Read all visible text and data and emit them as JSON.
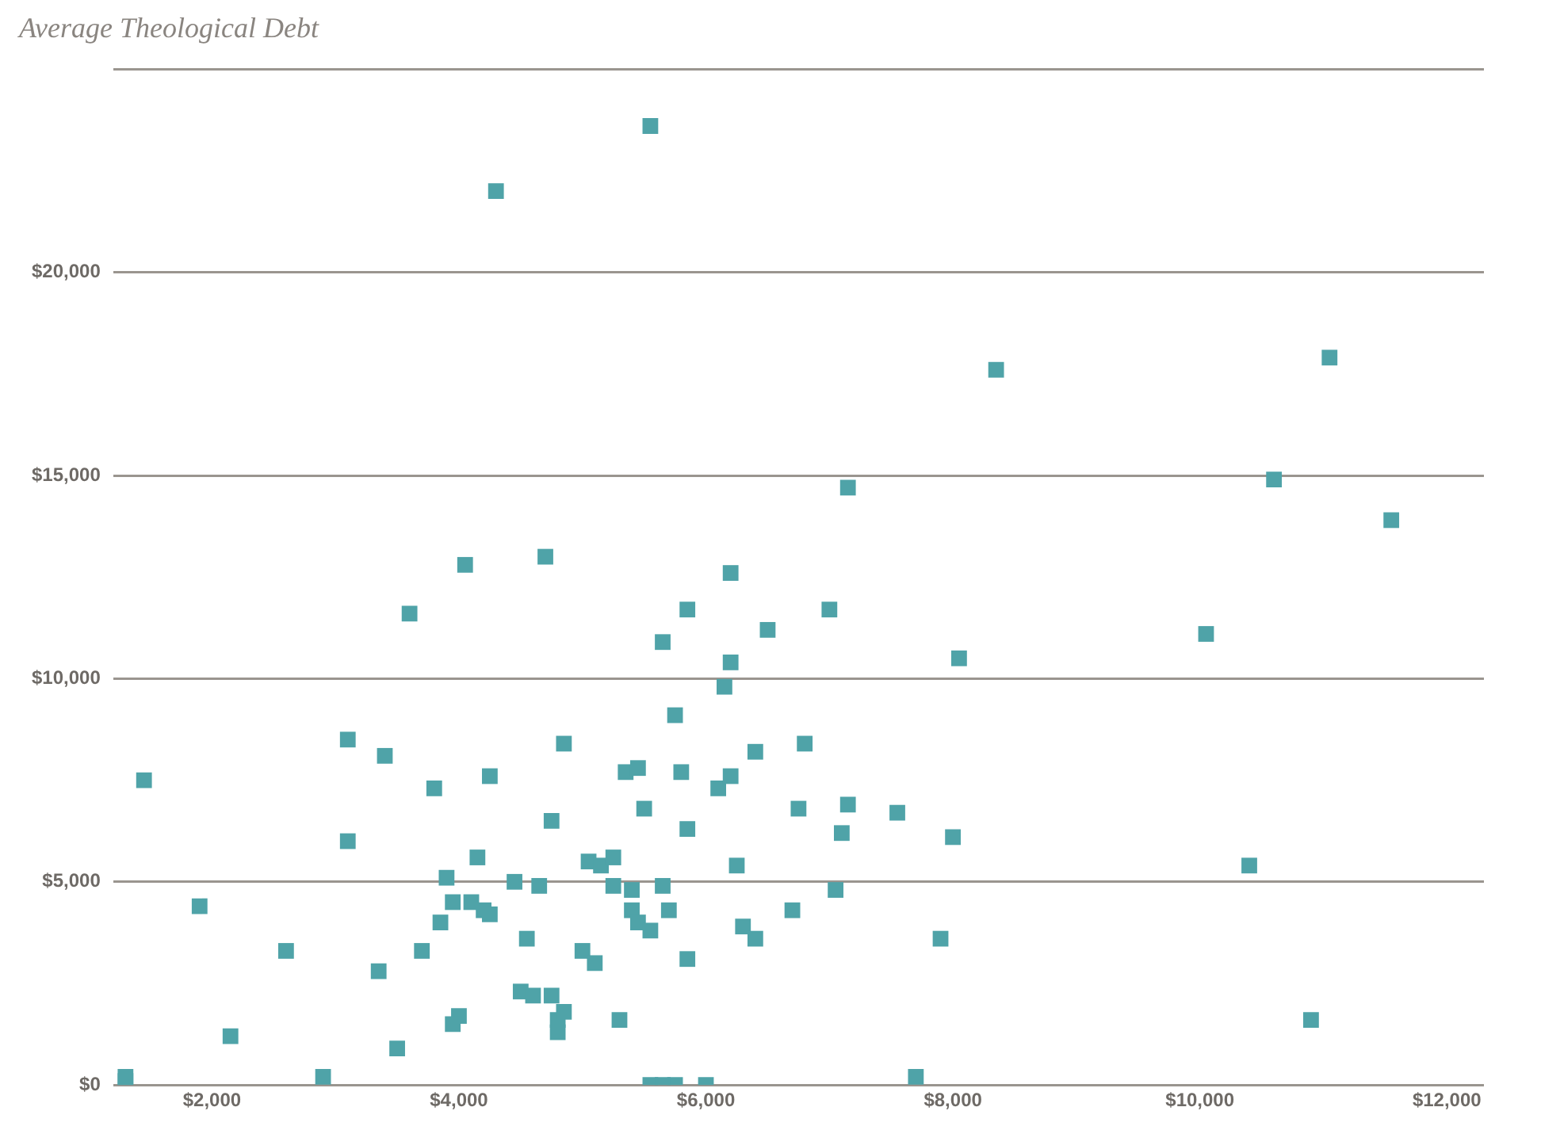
{
  "chart_data": {
    "type": "scatter",
    "title": "Average Theological Debt",
    "marker": "square",
    "grid": "y",
    "legend": false,
    "xlim": [
      1200,
      12300
    ],
    "xticks": [
      {
        "value": 2000,
        "label": "$2,000"
      },
      {
        "value": 4000,
        "label": "$4,000"
      },
      {
        "value": 6000,
        "label": "$6,000"
      },
      {
        "value": 8000,
        "label": "$8,000"
      },
      {
        "value": 10000,
        "label": "$10,000"
      },
      {
        "value": 12000,
        "label": "$12,000"
      }
    ],
    "ylim": [
      0,
      25000
    ],
    "yticks": [
      {
        "value": 0,
        "label": "$0"
      },
      {
        "value": 5000,
        "label": "$5,000"
      },
      {
        "value": 10000,
        "label": "$10,000"
      },
      {
        "value": 15000,
        "label": "$15,000"
      },
      {
        "value": 20000,
        "label": "$20,000"
      },
      {
        "value": 25000,
        "label": null
      }
    ],
    "series": [
      {
        "color": "#4fa3a8",
        "x": [
          1300,
          1300,
          1450,
          1900,
          2150,
          2600,
          2900,
          3100,
          3100,
          3350,
          3400,
          3500,
          3600,
          3700,
          3800,
          3850,
          3900,
          3950,
          4000,
          3950,
          4050,
          4100,
          4150,
          4200,
          4250,
          4300,
          4250,
          4450,
          4550,
          4500,
          4600,
          4650,
          4700,
          4750,
          4750,
          4800,
          4800,
          4850,
          4850,
          5000,
          5100,
          5050,
          5150,
          5250,
          5250,
          5300,
          5350,
          5400,
          5450,
          5400,
          5450,
          5500,
          5550,
          5550,
          5550,
          5650,
          5650,
          5700,
          5750,
          5750,
          5800,
          5850,
          5850,
          5850,
          6000,
          6100,
          6200,
          6150,
          6200,
          6200,
          6250,
          6300,
          6400,
          6400,
          6500,
          6700,
          6750,
          6800,
          7000,
          7050,
          7100,
          7150,
          7150,
          7550,
          7700,
          7900,
          8000,
          8050,
          8350,
          10050,
          10400,
          10600,
          10900,
          11050,
          11550,
          5650
        ],
        "values": [
          200,
          100,
          7500,
          4400,
          1200,
          3300,
          200,
          8500,
          6000,
          2800,
          8100,
          900,
          11600,
          3300,
          7300,
          4000,
          5100,
          4500,
          1700,
          1500,
          12800,
          4500,
          5600,
          4300,
          7600,
          22000,
          4200,
          5000,
          3600,
          2300,
          2200,
          4900,
          13000,
          2200,
          6500,
          1600,
          1300,
          1800,
          8400,
          3300,
          3000,
          5500,
          5400,
          5600,
          4900,
          1600,
          7700,
          4800,
          7800,
          4300,
          4000,
          6800,
          23600,
          3800,
          0,
          10900,
          4900,
          4300,
          0,
          9100,
          7700,
          11700,
          3100,
          6300,
          0,
          7300,
          7600,
          9800,
          10400,
          12600,
          5400,
          3900,
          8200,
          3600,
          11200,
          4300,
          6800,
          8400,
          11700,
          4800,
          6200,
          6900,
          14700,
          6700,
          200,
          3600,
          6100,
          10500,
          17600,
          11100,
          5400,
          14900,
          1600,
          17900,
          13900,
          0
        ]
      }
    ]
  }
}
